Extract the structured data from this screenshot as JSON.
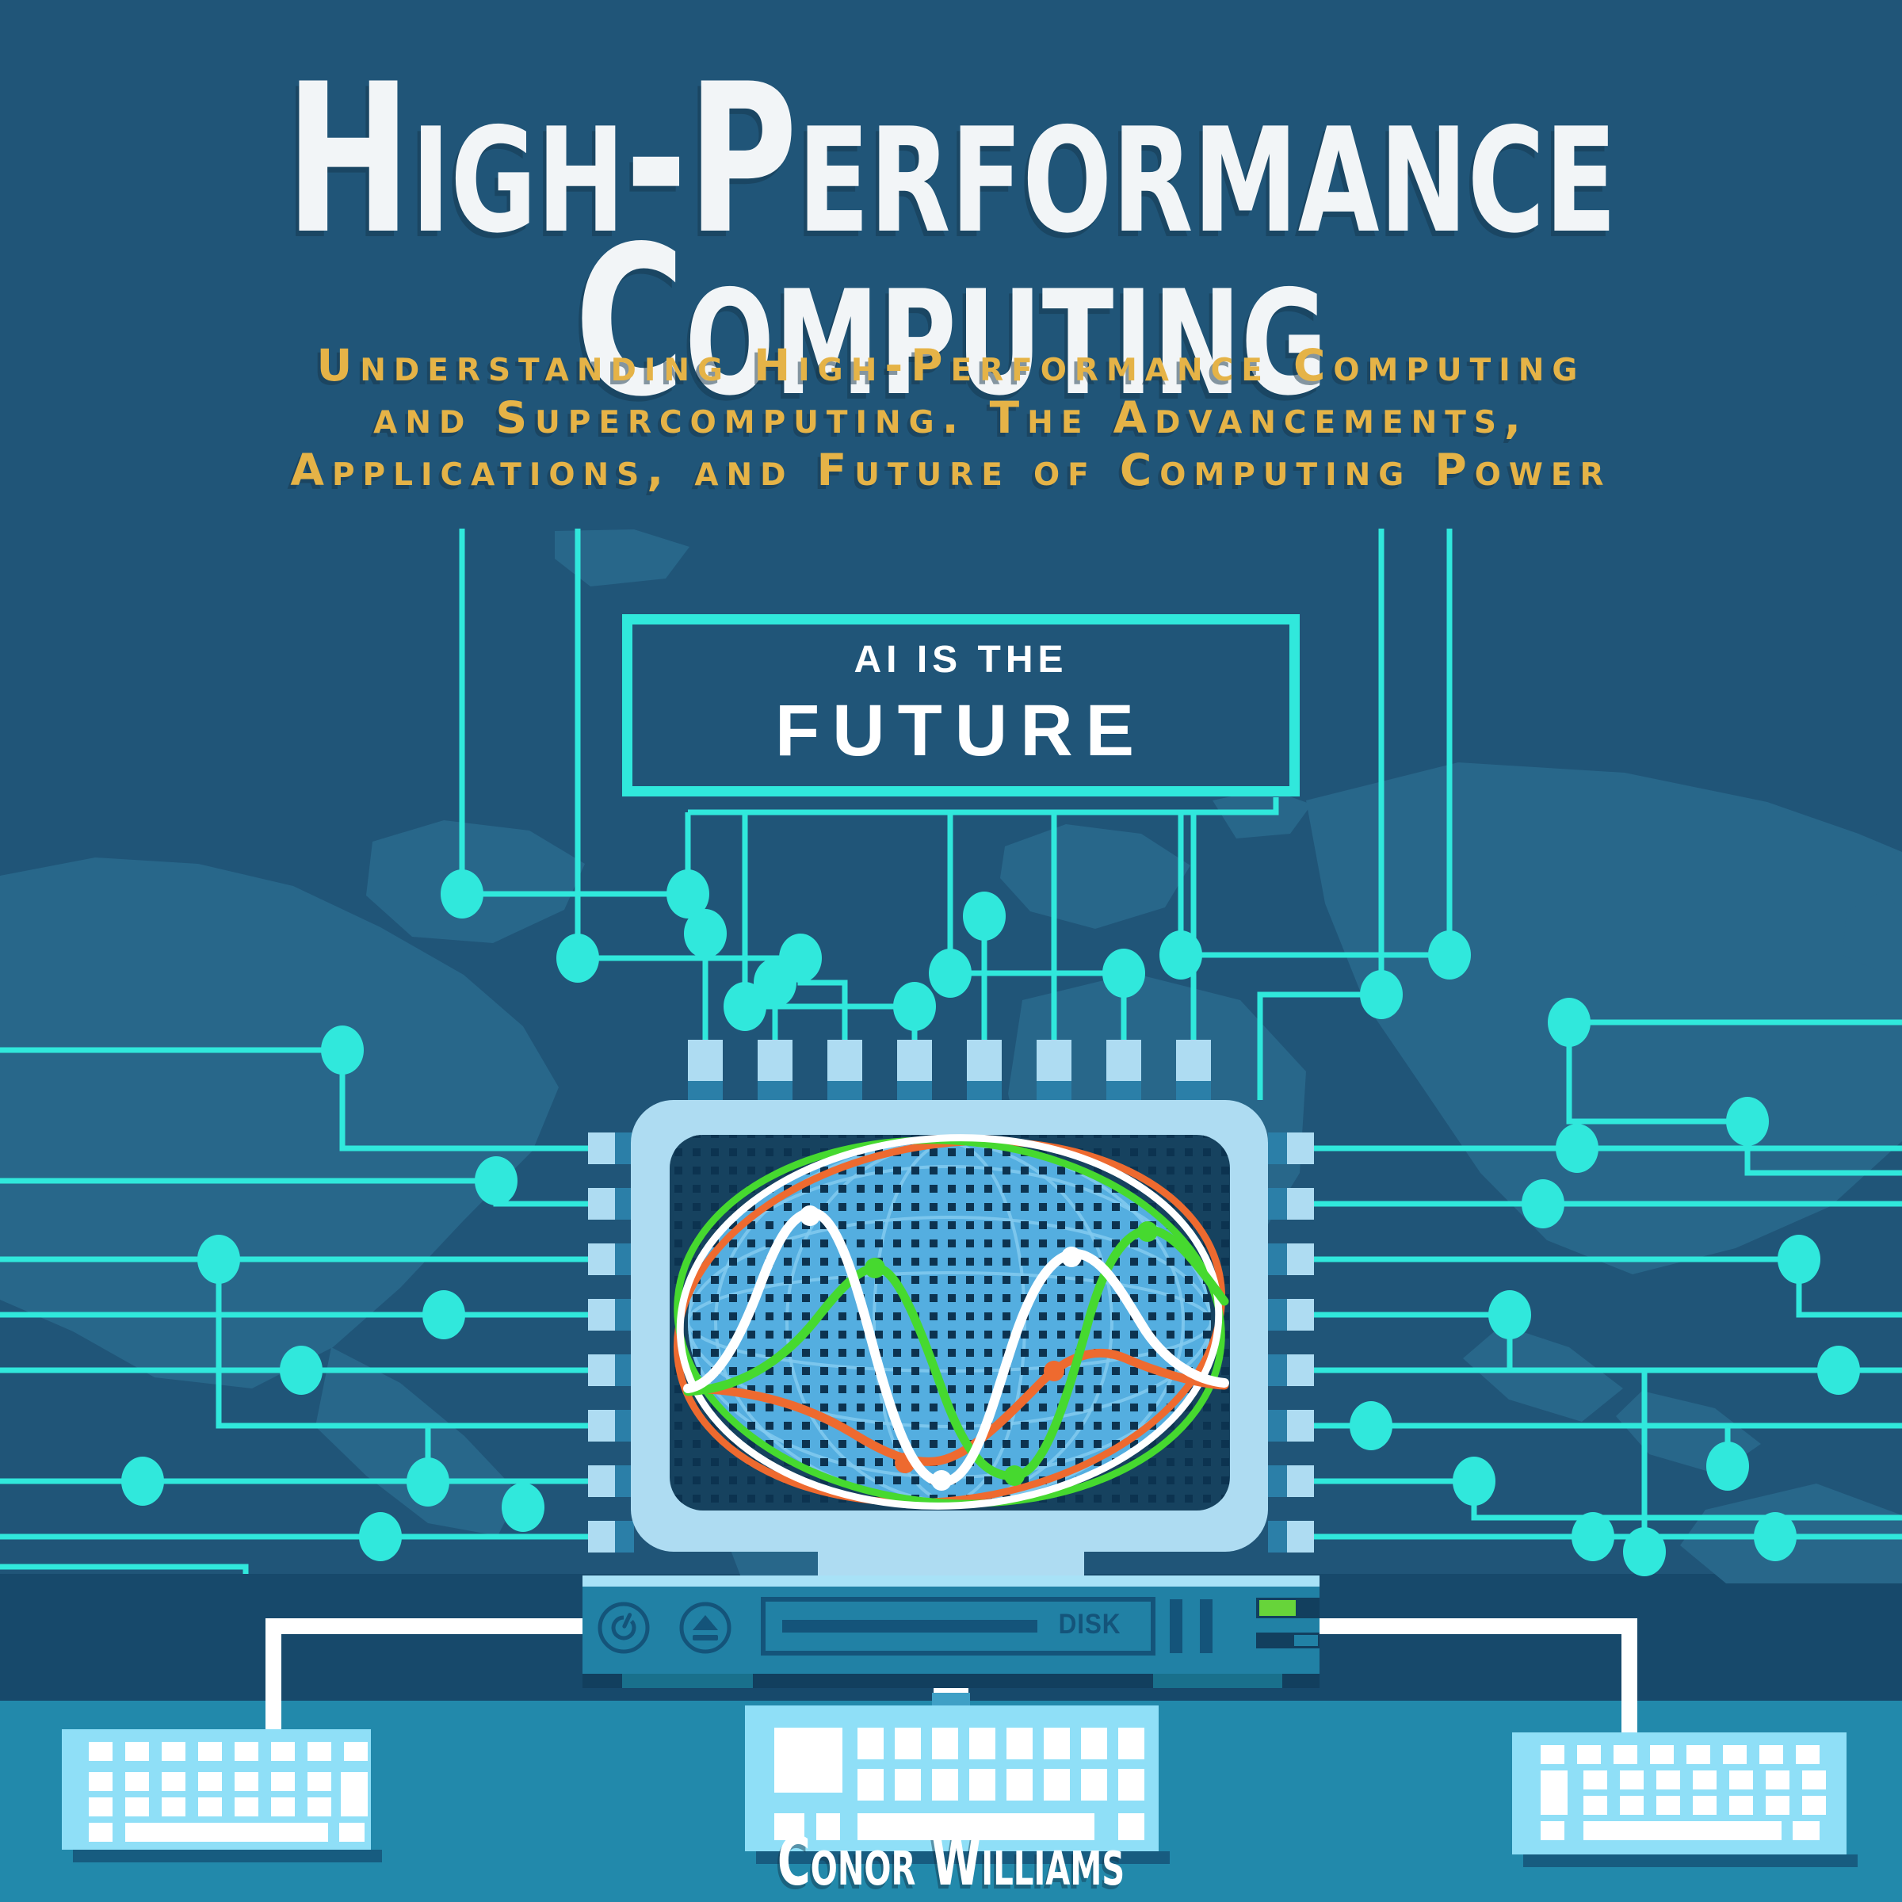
{
  "cover": {
    "title": {
      "line1": "High-Performance",
      "line2": "Computing"
    },
    "subtitle": {
      "line1": "Understanding High-Performance Computing",
      "line2": "and Supercomputing. The Advancements,",
      "line3": "Applications, and Future of Computing Power"
    },
    "banner": {
      "line1": "AI IS THE",
      "line2": "FUTURE"
    },
    "drive": {
      "disk_label": "DISK"
    },
    "author": "Conor Williams",
    "icons": {
      "power": "power-icon",
      "eject": "eject-icon"
    },
    "colors": {
      "bg": "#205578",
      "band_dark": "#17496B",
      "band_bottom": "#2289AB",
      "map": "#28678A",
      "circuit": "#30E8DC",
      "chip": "#AEDCF2",
      "pin_dark": "#2B7FA8",
      "screen": "#16425F",
      "screen_dot": "#0C3350",
      "globe": "#54AEE0",
      "globe_grid": "#83CAEE",
      "wave_white": "#FFFFFF",
      "wave_green": "#46D92F",
      "wave_orange": "#EE6A2F",
      "drive_body": "#2181A5",
      "drive_trim": "#A8E2F7",
      "drive_dark": "#14547A",
      "foot_teal": "#19708C",
      "foot_dark": "#123F5E",
      "led": "#67D43A",
      "keyboard": "#8FDFF7",
      "key": "#FFFFFF",
      "kb_shadow": "#175C80",
      "cable": "#FFFFFF",
      "tab_blue": "#3FA0C6",
      "title_text": "#F2F5F7",
      "subtitle_text": "#E5B347",
      "banner_text": "#FFFFFF"
    }
  }
}
